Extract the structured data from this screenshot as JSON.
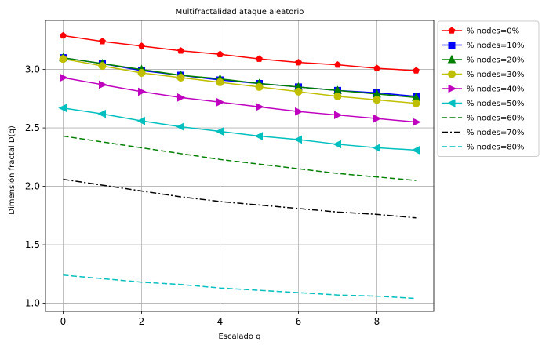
{
  "chart_data": {
    "type": "line",
    "title": "Multifractalidad ataque aleatorio",
    "xlabel": "Escalado q",
    "ylabel": "Dimensión fractal D(q)",
    "xlim": [
      -0.45,
      9.45
    ],
    "ylim": [
      0.93,
      3.42
    ],
    "xticks": [
      0,
      2,
      4,
      6,
      8
    ],
    "yticks": [
      1.0,
      1.5,
      2.0,
      2.5,
      3.0
    ],
    "xtick_labels": [
      "0",
      "2",
      "4",
      "6",
      "8"
    ],
    "ytick_labels": [
      "1.0",
      "1.5",
      "2.0",
      "2.5",
      "3.0"
    ],
    "grid": true,
    "legend_position": "outside-right",
    "x": [
      0,
      1,
      2,
      3,
      4,
      5,
      6,
      7,
      8,
      9
    ],
    "series": [
      {
        "name": "% nodes=0%",
        "color": "#ff0000",
        "marker": "pentagon",
        "dash": "solid",
        "values": [
          3.29,
          3.24,
          3.2,
          3.16,
          3.13,
          3.09,
          3.06,
          3.04,
          3.01,
          2.99
        ]
      },
      {
        "name": "% nodes=10%",
        "color": "#0000ff",
        "marker": "square",
        "dash": "solid",
        "values": [
          3.1,
          3.05,
          2.99,
          2.95,
          2.91,
          2.88,
          2.85,
          2.82,
          2.8,
          2.77
        ]
      },
      {
        "name": "% nodes=20%",
        "color": "#008000",
        "marker": "triangle-up",
        "dash": "solid",
        "values": [
          3.1,
          3.05,
          3.0,
          2.95,
          2.92,
          2.88,
          2.85,
          2.82,
          2.79,
          2.76
        ]
      },
      {
        "name": "% nodes=30%",
        "color": "#bfbf00",
        "marker": "circle",
        "dash": "solid",
        "values": [
          3.09,
          3.03,
          2.97,
          2.93,
          2.89,
          2.85,
          2.81,
          2.77,
          2.74,
          2.71
        ]
      },
      {
        "name": "% nodes=40%",
        "color": "#bf00bf",
        "marker": "triangle-right",
        "dash": "solid",
        "values": [
          2.93,
          2.87,
          2.81,
          2.76,
          2.72,
          2.68,
          2.64,
          2.61,
          2.58,
          2.55
        ]
      },
      {
        "name": "% nodes=50%",
        "color": "#00bfbf",
        "marker": "triangle-left",
        "dash": "solid",
        "values": [
          2.67,
          2.62,
          2.56,
          2.51,
          2.47,
          2.43,
          2.4,
          2.36,
          2.33,
          2.31
        ]
      },
      {
        "name": "% nodes=60%",
        "color": "#008000",
        "marker": "none",
        "dash": "dashed",
        "values": [
          2.43,
          2.38,
          2.33,
          2.28,
          2.23,
          2.19,
          2.15,
          2.11,
          2.08,
          2.05
        ]
      },
      {
        "name": "% nodes=70%",
        "color": "#000000",
        "marker": "none",
        "dash": "dashdot",
        "values": [
          2.06,
          2.01,
          1.96,
          1.91,
          1.87,
          1.84,
          1.81,
          1.78,
          1.76,
          1.73
        ]
      },
      {
        "name": "% nodes=80%",
        "color": "#00bfbf",
        "marker": "none",
        "dash": "dashed",
        "values": [
          1.24,
          1.21,
          1.18,
          1.16,
          1.13,
          1.11,
          1.09,
          1.07,
          1.06,
          1.04
        ]
      }
    ]
  }
}
